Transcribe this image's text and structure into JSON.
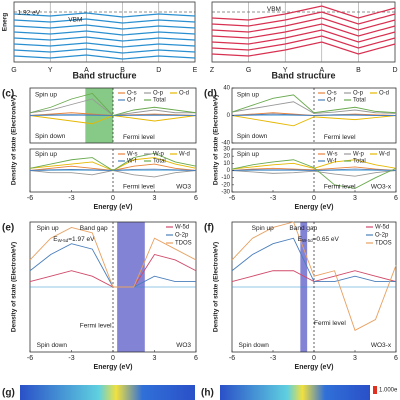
{
  "chart_data": [
    {
      "type": "line",
      "ylabel": "Energ",
      "xlabel": "Band structure",
      "color": "#2a8fd0",
      "categories": [
        "G",
        "Y",
        "A",
        "B",
        "D",
        "E"
      ],
      "ylim": [
        -2.5,
        0.5
      ],
      "annotations": [
        "1.92 eV",
        "VBM"
      ],
      "series": [
        {
          "values": [
            -0.1,
            -0.2,
            -0.05,
            -0.25,
            -0.1,
            -0.2
          ]
        },
        {
          "values": [
            -0.4,
            -0.5,
            -0.35,
            -0.55,
            -0.4,
            -0.5
          ]
        },
        {
          "values": [
            -0.7,
            -0.8,
            -0.65,
            -0.85,
            -0.7,
            -0.8
          ]
        },
        {
          "values": [
            -1.0,
            -1.1,
            -0.95,
            -1.15,
            -1.0,
            -1.1
          ]
        },
        {
          "values": [
            -1.3,
            -1.4,
            -1.25,
            -1.45,
            -1.3,
            -1.4
          ]
        },
        {
          "values": [
            -1.6,
            -1.7,
            -1.55,
            -1.75,
            -1.6,
            -1.7
          ]
        },
        {
          "values": [
            -1.9,
            -2.0,
            -1.85,
            -2.05,
            -1.9,
            -2.0
          ]
        },
        {
          "values": [
            -2.2,
            -2.3,
            -2.15,
            -2.35,
            -2.2,
            -2.3
          ]
        }
      ]
    },
    {
      "type": "line",
      "xlabel": "Band structure",
      "color": "#d83050",
      "categories": [
        "Z",
        "G",
        "Y",
        "A",
        "B",
        "D"
      ],
      "ylim": [
        -2.5,
        0.5
      ],
      "annotations": [
        "VBM"
      ],
      "series": [
        {
          "values": [
            -0.3,
            -0.4,
            -0.1,
            0.3,
            -0.3,
            0.2
          ]
        },
        {
          "values": [
            -0.6,
            -0.7,
            -0.4,
            0,
            -0.6,
            -0.1
          ]
        },
        {
          "values": [
            -0.9,
            -1.0,
            -0.7,
            -0.3,
            -0.9,
            -0.4
          ]
        },
        {
          "values": [
            -1.2,
            -1.3,
            -1.0,
            -0.6,
            -1.2,
            -0.7
          ]
        },
        {
          "values": [
            -1.5,
            -1.6,
            -1.3,
            -0.9,
            -1.5,
            -1.0
          ]
        },
        {
          "values": [
            -1.8,
            -1.9,
            -1.6,
            -1.2,
            -1.8,
            -1.3
          ]
        },
        {
          "values": [
            -2.1,
            -2.2,
            -1.9,
            -1.5,
            -2.1,
            -1.6
          ]
        }
      ]
    },
    {
      "type": "line",
      "panel": "(c)",
      "ylabel": "Density of state (Electron/eV)",
      "x": [
        -6,
        -4.5,
        -3,
        -1.5,
        0,
        1.5,
        3,
        4.5,
        6
      ],
      "xlim": [
        -6,
        6
      ],
      "ylim": [
        -10,
        10
      ],
      "span": [
        -2,
        0
      ],
      "span_color": "#5fb85f",
      "annotations": [
        "Spin up",
        "Spin down",
        "Fermi level"
      ],
      "series": [
        {
          "name": "O-s",
          "color": "#e8833a",
          "values": [
            0,
            0.5,
            1,
            0.5,
            0,
            0.3,
            0.5,
            0.3,
            0
          ]
        },
        {
          "name": "O-p",
          "color": "#999999",
          "values": [
            1,
            2,
            4,
            6,
            0,
            1,
            2,
            1,
            1
          ]
        },
        {
          "name": "O-d",
          "color": "#e6b800",
          "values": [
            0,
            -1,
            -2,
            -3,
            0,
            -1,
            -2,
            -1,
            0
          ]
        },
        {
          "name": "O-f",
          "color": "#4a7ebb",
          "values": [
            0,
            0.2,
            0.3,
            0.2,
            0,
            0.1,
            0.2,
            0.1,
            0
          ]
        },
        {
          "name": "Total",
          "color": "#6aaa4f",
          "values": [
            1,
            3,
            6,
            8,
            0,
            2,
            3,
            2,
            1
          ]
        }
      ]
    },
    {
      "type": "line",
      "xlabel": "Energy (eV)",
      "x": [
        -6,
        -4.5,
        -3,
        -1.5,
        0,
        1.5,
        3,
        4.5,
        6
      ],
      "xlim": [
        -6,
        6
      ],
      "ylim": [
        -10,
        10
      ],
      "xticks": [
        -6,
        -3,
        0,
        3,
        6
      ],
      "annotations": [
        "Spin up",
        "Fermi level",
        "WO3"
      ],
      "series": [
        {
          "name": "W-s",
          "color": "#e8833a",
          "values": [
            0,
            1,
            2,
            1,
            0,
            2,
            3,
            1,
            0
          ]
        },
        {
          "name": "W-p",
          "color": "#999999",
          "values": [
            0,
            -1,
            -1,
            -2,
            0,
            -2,
            -3,
            -1,
            0
          ]
        },
        {
          "name": "W-d",
          "color": "#e6b800",
          "values": [
            1,
            2,
            3,
            4,
            0,
            5,
            6,
            3,
            1
          ]
        },
        {
          "name": "W-f",
          "color": "#4a7ebb",
          "values": [
            0,
            0.3,
            0.5,
            0.3,
            0,
            0.5,
            0.6,
            0.3,
            0
          ]
        },
        {
          "name": "Total",
          "color": "#6aaa4f",
          "values": [
            1,
            3,
            5,
            6,
            0,
            6,
            8,
            4,
            2
          ]
        }
      ]
    },
    {
      "type": "line",
      "panel": "(d)",
      "ylabel": "Density of state (Electron/eV)",
      "x": [
        -6,
        -4.5,
        -3,
        -1.5,
        0,
        1.5,
        3,
        4.5,
        6
      ],
      "xlim": [
        -6,
        6
      ],
      "ylim": [
        -40,
        40
      ],
      "yticks": [
        40,
        0,
        -40
      ],
      "annotations": [
        "Spin up",
        "Spin down",
        "Fermi level"
      ],
      "series": [
        {
          "name": "O-s",
          "color": "#e8833a",
          "values": [
            0,
            2,
            4,
            2,
            0,
            1,
            2,
            1,
            0
          ]
        },
        {
          "name": "O-p",
          "color": "#999999",
          "values": [
            5,
            10,
            15,
            20,
            3,
            5,
            8,
            4,
            3
          ]
        },
        {
          "name": "O-d",
          "color": "#e6b800",
          "values": [
            0,
            -5,
            -10,
            -15,
            -2,
            -4,
            -6,
            -3,
            0
          ]
        },
        {
          "name": "O-f",
          "color": "#4a7ebb",
          "values": [
            0,
            1,
            2,
            1,
            0,
            1,
            1,
            0,
            0
          ]
        },
        {
          "name": "Total",
          "color": "#6aaa4f",
          "values": [
            5,
            15,
            25,
            30,
            4,
            8,
            12,
            6,
            4
          ]
        }
      ]
    },
    {
      "type": "line",
      "xlabel": "Energy (eV)",
      "x": [
        -6,
        -4.5,
        -3,
        -1.5,
        0,
        1.5,
        3,
        4.5,
        6
      ],
      "xlim": [
        -6,
        6
      ],
      "ylim": [
        -30,
        30
      ],
      "xticks": [
        -6,
        -3,
        0,
        3,
        6
      ],
      "yticks": [
        30,
        20,
        10,
        0,
        -10,
        -20,
        -30
      ],
      "annotations": [
        "Spin up",
        "Fermi level",
        "WO3-x"
      ],
      "series": [
        {
          "name": "W-s",
          "color": "#e8833a",
          "values": [
            0,
            2,
            3,
            2,
            1,
            3,
            5,
            2,
            0
          ]
        },
        {
          "name": "W-p",
          "color": "#999999",
          "values": [
            0,
            -2,
            -4,
            -3,
            -1,
            -5,
            -8,
            -3,
            0
          ]
        },
        {
          "name": "W-d",
          "color": "#e6b800",
          "values": [
            2,
            5,
            8,
            10,
            3,
            12,
            15,
            8,
            3
          ]
        },
        {
          "name": "W-f",
          "color": "#4a7ebb",
          "values": [
            0,
            1,
            1,
            1,
            0,
            1,
            2,
            1,
            0
          ]
        },
        {
          "name": "Total",
          "color": "#6aaa4f",
          "values": [
            2,
            8,
            12,
            15,
            4,
            -20,
            -25,
            -10,
            3
          ]
        }
      ]
    },
    {
      "type": "line",
      "panel": "(e)",
      "ylabel": "Density of state (Electron/eV)",
      "xlabel": "Energy (eV)",
      "x": [
        -6,
        -4.5,
        -3,
        -1.5,
        0,
        1.5,
        3,
        4.5,
        6
      ],
      "xlim": [
        -6,
        6
      ],
      "ylim": [
        -12,
        12
      ],
      "xticks": [
        -6,
        -3,
        0,
        3,
        6
      ],
      "span": [
        0.3,
        2.3
      ],
      "span_color": "#5a5ac8",
      "annotations": [
        "Spin up",
        "Band gap",
        "Spin down",
        "Fermi level",
        "WO3"
      ],
      "gap_label": {
        "symbol": "E",
        "subscript": "W-5d",
        "value": "=1.97 eV"
      },
      "series": [
        {
          "name": "W-5d",
          "color": "#d04a6a",
          "values": [
            1,
            2,
            3,
            2,
            0,
            0,
            6,
            5,
            3
          ]
        },
        {
          "name": "O-2p",
          "color": "#4a7ebb",
          "values": [
            3,
            6,
            8,
            7,
            0,
            0,
            2,
            1,
            1
          ]
        },
        {
          "name": "TDOS",
          "color": "#e8a060",
          "values": [
            5,
            9,
            11,
            10,
            0,
            0,
            9,
            7,
            5
          ]
        }
      ]
    },
    {
      "type": "line",
      "panel": "(f)",
      "ylabel": "Density of state (Electron/eV)",
      "xlabel": "Energy (eV)",
      "x": [
        -6,
        -4.5,
        -3,
        -1.5,
        0,
        1.5,
        3,
        4.5,
        6
      ],
      "xlim": [
        -6,
        6
      ],
      "ylim": [
        -12,
        12
      ],
      "xticks": [
        -6,
        -3,
        0,
        3,
        6
      ],
      "span": [
        -1,
        -0.5
      ],
      "span_color": "#5a5ac8",
      "annotations": [
        "Spin up",
        "Band gap",
        "Spin down",
        "Fermi level",
        "WO3-x"
      ],
      "gap_label": {
        "symbol": "E",
        "subscript": "W-5d",
        "value": "=0.65 eV"
      },
      "series": [
        {
          "name": "W-5d",
          "color": "#d04a6a",
          "values": [
            1,
            2,
            3,
            3,
            1,
            2,
            3,
            2,
            1
          ]
        },
        {
          "name": "O-2p",
          "color": "#4a7ebb",
          "values": [
            3,
            6,
            8,
            9,
            1,
            1,
            2,
            1,
            1
          ]
        },
        {
          "name": "TDOS",
          "color": "#e8a060",
          "values": [
            5,
            9,
            11,
            12,
            2,
            3,
            -8,
            -6,
            4
          ]
        }
      ]
    }
  ],
  "footer": {
    "g_label": "(g)",
    "h_label": "(h)",
    "colorbar_max": "1.000e"
  }
}
